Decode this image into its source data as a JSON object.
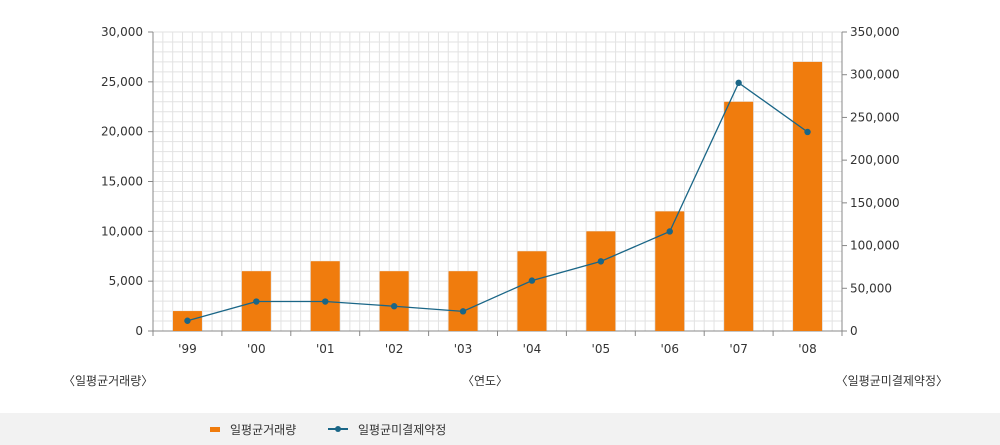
{
  "chart_data": {
    "type": "bar",
    "categories": [
      "'99",
      "'00",
      "'01",
      "'02",
      "'03",
      "'04",
      "'05",
      "'06",
      "'07",
      "'08"
    ],
    "series": [
      {
        "name": "일평균거래량",
        "type": "bar",
        "axis": "left",
        "color": "#f07c0d",
        "values": [
          2000,
          6000,
          7000,
          6000,
          6000,
          8000,
          10000,
          12000,
          23000,
          27000
        ]
      },
      {
        "name": "일평균미결제약정",
        "type": "line",
        "axis": "right",
        "color": "#1a6687",
        "values": [
          12000,
          34500,
          34500,
          29000,
          23000,
          59000,
          81500,
          116500,
          290500,
          233000
        ]
      }
    ],
    "y_left": {
      "label": "〈일평균거래량〉",
      "ylim": [
        0,
        30000
      ],
      "ticks": [
        "0",
        "5,000",
        "10,000",
        "15,000",
        "20,000",
        "25,000",
        "30,000"
      ]
    },
    "y_right": {
      "label": "〈일평균미결제약정〉",
      "ylim": [
        0,
        350000
      ],
      "ticks": [
        "0",
        "50,000",
        "100,000",
        "150,000",
        "200,000",
        "250,000",
        "300,000",
        "350,000"
      ]
    },
    "xlabel": "〈연도〉",
    "grid": true,
    "legend_position": "bottom"
  },
  "colors": {
    "bar": "#f07c0d",
    "line": "#1a6687",
    "grid": "#e2e2e2",
    "axis": "#888888",
    "text": "#333333"
  }
}
